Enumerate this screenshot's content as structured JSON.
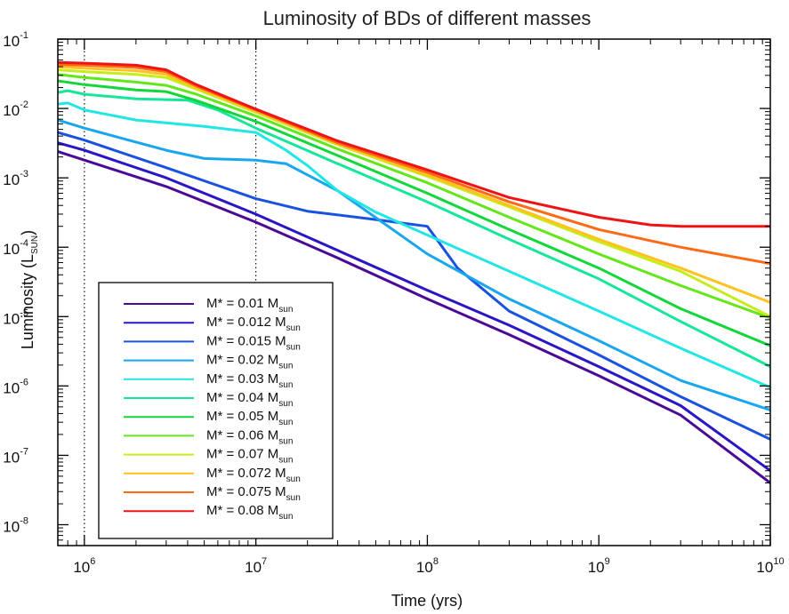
{
  "chart_data": {
    "type": "line",
    "title": "Luminosity of BDs of different masses",
    "xlabel": "Time (yrs)",
    "ylabel_main": "Luminosity (L",
    "ylabel_sub": "SUN",
    "ylabel_close": ")",
    "x_scale": "log",
    "y_scale": "log",
    "xlim": [
      700000,
      10000000000
    ],
    "ylim": [
      5e-09,
      0.1
    ],
    "x_ticks": [
      {
        "base": "10",
        "exp": "6"
      },
      {
        "base": "10",
        "exp": "7"
      },
      {
        "base": "10",
        "exp": "8"
      },
      {
        "base": "10",
        "exp": "9"
      },
      {
        "base": "10",
        "exp": "10"
      }
    ],
    "y_ticks": [
      {
        "base": "10",
        "exp": "-8"
      },
      {
        "base": "10",
        "exp": "-7"
      },
      {
        "base": "10",
        "exp": "-6"
      },
      {
        "base": "10",
        "exp": "-5"
      },
      {
        "base": "10",
        "exp": "-4"
      },
      {
        "base": "10",
        "exp": "-3"
      },
      {
        "base": "10",
        "exp": "-2"
      },
      {
        "base": "10",
        "exp": "-1"
      }
    ],
    "vertical_reference_lines": [
      1000000,
      10000000
    ],
    "grid": false,
    "legend_placement": "bottom-left",
    "series": [
      {
        "label_main": "M* = 0.01 M",
        "label_sub": "sun",
        "color": "#4b0a96",
        "x": [
          700000,
          1000000,
          3000000,
          10000000,
          30000000,
          100000000,
          300000000,
          1000000000,
          3000000000,
          10000000000
        ],
        "y": [
          0.0024,
          0.0018,
          0.00075,
          0.00023,
          7e-05,
          1.8e-05,
          5.5e-06,
          1.4e-06,
          3.8e-07,
          4e-08
        ]
      },
      {
        "label_main": "M* = 0.012 M",
        "label_sub": "sun",
        "color": "#2a16c4",
        "x": [
          700000,
          1000000,
          3000000,
          10000000,
          30000000,
          100000000,
          300000000,
          1000000000,
          3000000000,
          10000000000
        ],
        "y": [
          0.0032,
          0.0025,
          0.001,
          0.0003,
          9e-05,
          2.4e-05,
          7.5e-06,
          1.9e-06,
          5.2e-07,
          6e-08
        ]
      },
      {
        "label_main": "M* = 0.015 M",
        "label_sub": "sun",
        "color": "#1a52e0",
        "x": [
          700000,
          1000000,
          3000000,
          10000000,
          20000000,
          50000000,
          100000000,
          150000000,
          300000000,
          1000000000,
          3000000000,
          10000000000
        ],
        "y": [
          0.0045,
          0.0035,
          0.0014,
          0.0005,
          0.00033,
          0.00025,
          0.0002,
          5e-05,
          1.2e-05,
          2.8e-06,
          7e-07,
          1.7e-07
        ]
      },
      {
        "label_main": "M* = 0.02 M",
        "label_sub": "sun",
        "color": "#18a6ee",
        "x": [
          700000,
          1000000,
          3000000,
          5000000,
          10000000,
          15000000,
          30000000,
          100000000,
          300000000,
          1000000000,
          3000000000,
          10000000000
        ],
        "y": [
          0.0068,
          0.0052,
          0.0025,
          0.0019,
          0.0018,
          0.0016,
          0.00065,
          8e-05,
          1.8e-05,
          4.5e-06,
          1.2e-06,
          4.5e-07
        ]
      },
      {
        "label_main": "M* = 0.03 M",
        "label_sub": "sun",
        "color": "#22e6e6",
        "x": [
          700000,
          800000,
          1000000,
          2000000,
          5000000,
          10000000,
          15000000,
          20000000,
          30000000,
          50000000,
          100000000,
          300000000,
          1000000000,
          3000000000,
          10000000000
        ],
        "y": [
          0.0115,
          0.012,
          0.0095,
          0.0068,
          0.0055,
          0.0045,
          0.0025,
          0.0015,
          0.00065,
          0.00032,
          0.00015,
          4.5e-05,
          1.2e-05,
          3.5e-06,
          9.5e-07
        ]
      },
      {
        "label_main": "M* = 0.04 M",
        "label_sub": "sun",
        "color": "#16e69a",
        "x": [
          700000,
          800000,
          1000000,
          2000000,
          4000000,
          6000000,
          10000000,
          30000000,
          100000000,
          300000000,
          1000000000,
          3000000000,
          10000000000
        ],
        "y": [
          0.017,
          0.018,
          0.016,
          0.0138,
          0.0132,
          0.0095,
          0.0052,
          0.0016,
          0.00045,
          0.00013,
          3.5e-05,
          8.5e-06,
          1.9e-06
        ]
      },
      {
        "label_main": "M* = 0.05 M",
        "label_sub": "sun",
        "color": "#12d63a",
        "x": [
          700000,
          1000000,
          2000000,
          3000000,
          4500000,
          10000000,
          30000000,
          100000000,
          300000000,
          1000000000,
          3000000000,
          10000000000
        ],
        "y": [
          0.025,
          0.022,
          0.0185,
          0.0175,
          0.013,
          0.0065,
          0.0021,
          0.0006,
          0.00018,
          5e-05,
          1.3e-05,
          3.8e-06
        ]
      },
      {
        "label_main": "M* = 0.06 M",
        "label_sub": "sun",
        "color": "#64e61a",
        "x": [
          700000,
          1000000,
          2000000,
          3000000,
          4500000,
          10000000,
          30000000,
          100000000,
          300000000,
          1000000000,
          3000000000,
          10000000000
        ],
        "y": [
          0.031,
          0.028,
          0.024,
          0.0215,
          0.016,
          0.0078,
          0.0026,
          0.00085,
          0.00027,
          8e-05,
          2.8e-05,
          9.5e-06
        ]
      },
      {
        "label_main": "M* = 0.07 M",
        "label_sub": "sun",
        "color": "#c6ec1a",
        "x": [
          700000,
          1000000,
          2000000,
          3000000,
          4500000,
          10000000,
          30000000,
          100000000,
          300000000,
          1000000000,
          3000000000,
          10000000000
        ],
        "y": [
          0.036,
          0.034,
          0.031,
          0.028,
          0.019,
          0.0088,
          0.003,
          0.00105,
          0.00038,
          0.00012,
          4.5e-05,
          1e-05
        ]
      },
      {
        "label_main": "M* = 0.072 M",
        "label_sub": "sun",
        "color": "#ffc21e",
        "x": [
          700000,
          1000000,
          2000000,
          3000000,
          4500000,
          10000000,
          30000000,
          100000000,
          300000000,
          1000000000,
          3000000000,
          10000000000
        ],
        "y": [
          0.04,
          0.038,
          0.035,
          0.031,
          0.02,
          0.0092,
          0.0031,
          0.0011,
          0.0004,
          0.00013,
          5e-05,
          1.6e-05
        ]
      },
      {
        "label_main": "M* = 0.075 M",
        "label_sub": "sun",
        "color": "#ff6a14",
        "x": [
          700000,
          1000000,
          2000000,
          3000000,
          4500000,
          10000000,
          30000000,
          100000000,
          300000000,
          1000000000,
          3000000000,
          10000000000
        ],
        "y": [
          0.043,
          0.042,
          0.039,
          0.034,
          0.021,
          0.0095,
          0.0032,
          0.0012,
          0.00045,
          0.00018,
          0.0001,
          5.8e-05
        ]
      },
      {
        "label_main": "M* = 0.08 M",
        "label_sub": "sun",
        "color": "#ee1414",
        "x": [
          700000,
          1000000,
          2000000,
          3000000,
          4500000,
          10000000,
          30000000,
          100000000,
          300000000,
          1000000000,
          2000000000,
          3000000000,
          10000000000
        ],
        "y": [
          0.046,
          0.045,
          0.042,
          0.036,
          0.022,
          0.0098,
          0.0034,
          0.0013,
          0.00052,
          0.00027,
          0.00021,
          0.0002,
          0.0002
        ]
      }
    ]
  }
}
